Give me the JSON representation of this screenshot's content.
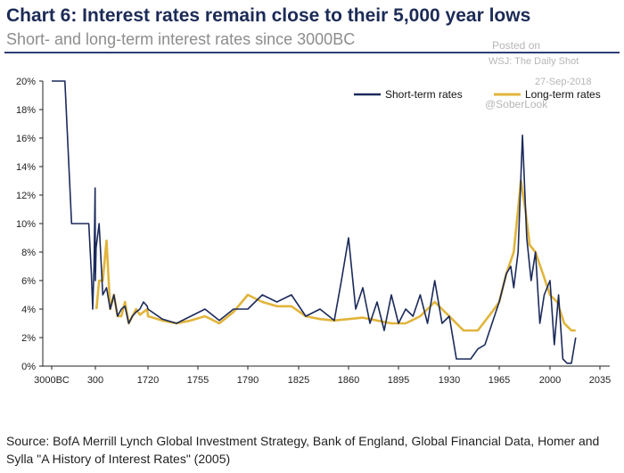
{
  "header": {
    "title": "Chart 6: Interest rates remain close to their 5,000 year lows",
    "subtitle": "Short- and long-term interest rates since 3000BC"
  },
  "watermark": {
    "posted": "Posted on",
    "source": "WSJ: The Daily Shot",
    "date": "27-Sep-2018",
    "handle": "@SoberLook"
  },
  "footer": {
    "source": "Source: BofA Merrill Lynch Global Investment Strategy, Bank of England, Global Financial Data, Homer and Sylla \"A History of Interest Rates\" (2005)"
  },
  "colors": {
    "short_term": "#1b2a5a",
    "long_term": "#e1b43b",
    "title": "#1c2b56",
    "axis": "#222222"
  },
  "chart_data": {
    "type": "line",
    "title": "Chart 6: Interest rates remain close to their 5,000 year lows",
    "subtitle": "Short- and long-term interest rates since 3000BC",
    "xlabel": "",
    "ylabel": "",
    "x_tick_labels": [
      "3000BC",
      "300",
      "1720",
      "1755",
      "1790",
      "1825",
      "1860",
      "1895",
      "1930",
      "1965",
      "2000",
      "2035"
    ],
    "y_tick_labels": [
      "0%",
      "2%",
      "4%",
      "6%",
      "8%",
      "10%",
      "12%",
      "14%",
      "16%",
      "18%",
      "20%"
    ],
    "ylim": [
      0,
      20
    ],
    "grid": false,
    "legend_position": "top-right",
    "x_scale_note": "non-linear: first tick at 3000BC, second at 300, then linear 1720–2035",
    "series": [
      {
        "name": "Short-term rates",
        "x": [
          -3000,
          -2500,
          -2000,
          -1500,
          -1000,
          -500,
          -200,
          0,
          100,
          200,
          280,
          300,
          320,
          400,
          500,
          600,
          700,
          800,
          900,
          1000,
          1100,
          1200,
          1300,
          1400,
          1500,
          1600,
          1700,
          1720,
          1730,
          1740,
          1750,
          1760,
          1770,
          1780,
          1790,
          1800,
          1810,
          1820,
          1830,
          1840,
          1850,
          1855,
          1860,
          1865,
          1870,
          1875,
          1880,
          1885,
          1890,
          1895,
          1900,
          1905,
          1910,
          1915,
          1920,
          1925,
          1930,
          1935,
          1940,
          1945,
          1950,
          1955,
          1960,
          1965,
          1970,
          1973,
          1975,
          1978,
          1981,
          1984,
          1987,
          1990,
          1993,
          1996,
          2000,
          2003,
          2006,
          2009,
          2012,
          2015,
          2018
        ],
        "y": [
          20,
          20,
          20,
          10,
          10,
          10,
          10,
          6.5,
          4,
          7,
          12.5,
          6,
          8.3,
          10,
          5,
          5.5,
          4,
          5,
          3.5,
          4,
          4.2,
          3,
          3.5,
          3.8,
          4,
          4.5,
          4.2,
          4,
          3.3,
          3,
          3.5,
          4,
          3.2,
          4,
          4,
          5,
          4.5,
          5,
          3.5,
          4,
          3.2,
          6,
          9,
          4,
          5.5,
          3,
          4.5,
          2.5,
          5,
          3,
          4,
          3.5,
          5,
          3,
          6,
          3,
          3.5,
          0.5,
          0.5,
          0.5,
          1.2,
          1.5,
          3,
          4.5,
          6.5,
          7,
          5.5,
          8,
          16.2,
          9,
          6,
          8,
          3,
          5,
          6,
          1.5,
          5,
          0.5,
          0.2,
          0.2,
          2
        ]
      },
      {
        "name": "Long-term rates",
        "x": [
          330,
          400,
          500,
          600,
          700,
          800,
          900,
          1000,
          1100,
          1200,
          1300,
          1400,
          1500,
          1600,
          1700,
          1720,
          1730,
          1740,
          1750,
          1760,
          1770,
          1780,
          1790,
          1800,
          1810,
          1820,
          1830,
          1840,
          1850,
          1860,
          1870,
          1880,
          1890,
          1900,
          1910,
          1920,
          1930,
          1940,
          1950,
          1960,
          1965,
          1970,
          1975,
          1980,
          1983,
          1986,
          1990,
          1995,
          2000,
          2005,
          2010,
          2015,
          2018
        ],
        "y": [
          4,
          6,
          6,
          8.8,
          4,
          5,
          3.5,
          3.5,
          4.5,
          3,
          3.5,
          4,
          3.6,
          3.8,
          4,
          3.5,
          3.2,
          3,
          3.2,
          3.5,
          3,
          3.8,
          5,
          4.5,
          4.2,
          4.2,
          3.5,
          3.3,
          3.2,
          3.3,
          3.4,
          3.2,
          3,
          3,
          3.5,
          4.5,
          3.5,
          2.5,
          2.5,
          3.8,
          4.5,
          6.5,
          8,
          13,
          11,
          8.5,
          8,
          6.5,
          5,
          4.5,
          3,
          2.5,
          2.5
        ]
      }
    ]
  }
}
